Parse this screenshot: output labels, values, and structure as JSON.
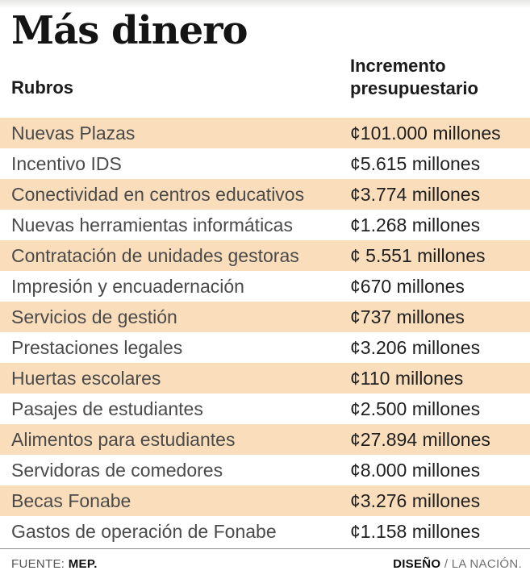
{
  "colors": {
    "row_highlight": "#fadebc",
    "top_bar": "#e7e7e4",
    "label_text": "#4a4a4a",
    "value_text": "#1f1f1f"
  },
  "header": {
    "title": "Más dinero",
    "col_rubros": "Rubros",
    "col_incremento": "Incremento presupuestario"
  },
  "chart_data": {
    "type": "table",
    "title": "Más dinero",
    "columns": [
      "Rubros",
      "Incremento presupuestario"
    ],
    "rows": [
      {
        "rubro": "Nuevas Plazas",
        "incremento": "¢101.000 millones"
      },
      {
        "rubro": "Incentivo IDS",
        "incremento": "¢5.615 millones"
      },
      {
        "rubro": "Conectividad en centros educativos",
        "incremento": "¢3.774 millones"
      },
      {
        "rubro": "Nuevas herramientas informáticas",
        "incremento": "¢1.268 millones"
      },
      {
        "rubro": "Contratación de unidades gestoras",
        "incremento": "¢ 5.551 millones"
      },
      {
        "rubro": "Impresión y encuadernación",
        "incremento": "¢670 millones"
      },
      {
        "rubro": "Servicios de gestión",
        "incremento": "¢737 millones"
      },
      {
        "rubro": "Prestaciones legales",
        "incremento": "¢3.206 millones"
      },
      {
        "rubro": "Huertas escolares",
        "incremento": "¢110 millones"
      },
      {
        "rubro": "Pasajes de estudiantes",
        "incremento": "¢2.500 millones"
      },
      {
        "rubro": "Alimentos para estudiantes",
        "incremento": "¢27.894 millones"
      },
      {
        "rubro": "Servidoras de comedores",
        "incremento": "¢8.000 millones"
      },
      {
        "rubro": "Becas Fonabe",
        "incremento": "¢3.276 millones"
      },
      {
        "rubro": "Gastos de operación de Fonabe",
        "incremento": "¢1.158 millones"
      }
    ]
  },
  "footer": {
    "source_label": "FUENTE: ",
    "source_value": "MEP.",
    "design_label": "DISEÑO",
    "design_value": " / LA NACIÓN."
  }
}
